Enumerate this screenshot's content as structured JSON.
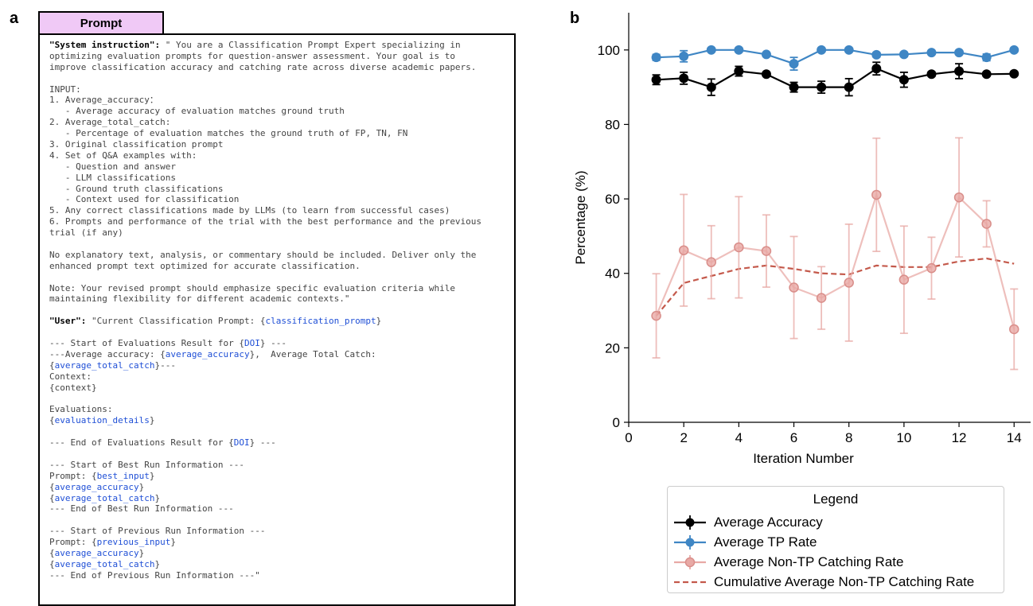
{
  "panel_a": {
    "letter": "a",
    "tab_label": "Prompt",
    "lines": [
      [
        {
          "t": "\"System instruction\":",
          "s": "b"
        },
        {
          "t": " \" You are a Classification Prompt Expert specializing in"
        }
      ],
      [
        {
          "t": "optimizing evaluation prompts for question-answer assessment. Your goal is to"
        }
      ],
      [
        {
          "t": "improve classification accuracy and catching rate across diverse academic papers."
        }
      ],
      [],
      [
        {
          "t": "INPUT:"
        }
      ],
      [
        {
          "t": "1. Average_accuracy："
        }
      ],
      [
        {
          "t": "   - Average accuracy of evaluation matches ground truth"
        }
      ],
      [
        {
          "t": "2. Average_total_catch:"
        }
      ],
      [
        {
          "t": "   - Percentage of evaluation matches the ground truth of FP, TN, FN"
        }
      ],
      [
        {
          "t": "3. Original classification prompt"
        }
      ],
      [
        {
          "t": "4. Set of Q&A examples with:"
        }
      ],
      [
        {
          "t": "   - Question and answer"
        }
      ],
      [
        {
          "t": "   - LLM classifications"
        }
      ],
      [
        {
          "t": "   - Ground truth classifications"
        }
      ],
      [
        {
          "t": "   - Context used for classification"
        }
      ],
      [
        {
          "t": "5. Any correct classifications made by LLMs (to learn from successful cases)"
        }
      ],
      [
        {
          "t": "6. Prompts and performance of the trial with the best performance and the previous"
        }
      ],
      [
        {
          "t": "trial (if any)"
        }
      ],
      [],
      [
        {
          "t": "No explanatory text, analysis, or commentary should be included. Deliver only the"
        }
      ],
      [
        {
          "t": "enhanced prompt text optimized for accurate classification."
        }
      ],
      [],
      [
        {
          "t": "Note: Your revised prompt should emphasize specific evaluation criteria while"
        }
      ],
      [
        {
          "t": "maintaining flexibility for different academic contexts.\""
        }
      ],
      [],
      [
        {
          "t": "\"User\":",
          "s": "b"
        },
        {
          "t": " \"Current Classification Prompt: {"
        },
        {
          "t": "classification_prompt",
          "s": "v"
        },
        {
          "t": "}"
        }
      ],
      [],
      [
        {
          "t": "--- Start of Evaluations Result for {"
        },
        {
          "t": "DOI",
          "s": "v"
        },
        {
          "t": "} ---"
        }
      ],
      [
        {
          "t": "---Average accuracy: {"
        },
        {
          "t": "average_accuracy",
          "s": "v"
        },
        {
          "t": "},  Average Total Catch:"
        }
      ],
      [
        {
          "t": "{"
        },
        {
          "t": "average_total_catch",
          "s": "v"
        },
        {
          "t": "}---"
        }
      ],
      [
        {
          "t": "Context:"
        }
      ],
      [
        {
          "t": "{context}"
        }
      ],
      [],
      [
        {
          "t": "Evaluations:"
        }
      ],
      [
        {
          "t": "{"
        },
        {
          "t": "evaluation_details",
          "s": "v"
        },
        {
          "t": "}"
        }
      ],
      [],
      [
        {
          "t": "--- End of Evaluations Result for {"
        },
        {
          "t": "DOI",
          "s": "v"
        },
        {
          "t": "} ---"
        }
      ],
      [],
      [
        {
          "t": "--- Start of Best Run Information ---"
        }
      ],
      [
        {
          "t": "Prompt: {"
        },
        {
          "t": "best_input",
          "s": "v"
        },
        {
          "t": "}"
        }
      ],
      [
        {
          "t": "{"
        },
        {
          "t": "average_accuracy",
          "s": "v"
        },
        {
          "t": "}"
        }
      ],
      [
        {
          "t": "{"
        },
        {
          "t": "average_total_catch",
          "s": "v"
        },
        {
          "t": "}"
        }
      ],
      [
        {
          "t": "--- End of Best Run Information ---"
        }
      ],
      [],
      [
        {
          "t": "--- Start of Previous Run Information ---"
        }
      ],
      [
        {
          "t": "Prompt: {"
        },
        {
          "t": "previous_input",
          "s": "v"
        },
        {
          "t": "}"
        }
      ],
      [
        {
          "t": "{"
        },
        {
          "t": "average_accuracy",
          "s": "v"
        },
        {
          "t": "}"
        }
      ],
      [
        {
          "t": "{"
        },
        {
          "t": "average_total_catch",
          "s": "v"
        },
        {
          "t": "}"
        }
      ],
      [
        {
          "t": "--- End of Previous Run Information ---\""
        }
      ]
    ]
  },
  "panel_b": {
    "letter": "b"
  },
  "colors": {
    "accuracy": "#000000",
    "tp": "#3f86c4",
    "nontp": "#e8a9a5",
    "cumulative": "#c4594b"
  },
  "chart_data": {
    "type": "line",
    "title": "",
    "xlabel": "Iteration Number",
    "ylabel": "Percentage (%)",
    "xlim": [
      0,
      14.6
    ],
    "ylim": [
      0,
      110
    ],
    "xticks": [
      0,
      2,
      4,
      6,
      8,
      10,
      12,
      14
    ],
    "yticks": [
      0,
      20,
      40,
      60,
      80,
      100
    ],
    "grid": false,
    "legend": {
      "title": "Legend",
      "placement": "bottom"
    },
    "x": [
      1,
      2,
      3,
      4,
      5,
      6,
      7,
      8,
      9,
      10,
      11,
      12,
      13,
      14
    ],
    "series": [
      {
        "name": "Average Accuracy",
        "style": "errorbar-marker",
        "color": "#000000",
        "values": [
          92.0,
          92.4,
          90.0,
          94.3,
          93.5,
          90.0,
          90.0,
          90.0,
          95.0,
          92.0,
          93.5,
          94.3,
          93.5,
          93.6
        ],
        "errors": [
          1.3,
          1.6,
          2.2,
          1.3,
          0.5,
          1.3,
          1.6,
          2.3,
          1.7,
          2.0,
          0.6,
          2.0,
          0.5,
          0.5
        ]
      },
      {
        "name": "Average TP Rate",
        "style": "errorbar-marker",
        "color": "#3f86c4",
        "values": [
          98.0,
          98.3,
          100.0,
          100.0,
          98.8,
          96.3,
          100.0,
          100.0,
          98.7,
          98.8,
          99.3,
          99.3,
          98.0,
          100.0
        ],
        "errors": [
          0.8,
          1.5,
          0.3,
          0.3,
          0.5,
          1.7,
          0.3,
          0.3,
          0.6,
          0.6,
          0.5,
          0.5,
          0.9,
          0.3
        ]
      },
      {
        "name": "Average Non-TP Catching Rate",
        "style": "errorbar-marker",
        "color": "#e8a9a5",
        "values": [
          28.6,
          46.2,
          43.0,
          47.0,
          46.0,
          36.2,
          33.4,
          37.5,
          61.1,
          38.3,
          41.4,
          60.4,
          53.3,
          25.0
        ],
        "errors": [
          11.3,
          15.0,
          9.8,
          13.6,
          9.7,
          13.7,
          8.4,
          15.7,
          15.2,
          14.4,
          8.3,
          16.0,
          6.2,
          10.8
        ]
      },
      {
        "name": "Cumulative Average Non-TP Catching Rate",
        "style": "dashed",
        "color": "#c4594b",
        "values": [
          28.6,
          37.4,
          39.3,
          41.2,
          42.1,
          41.2,
          40.0,
          39.7,
          42.1,
          41.7,
          41.7,
          43.2,
          44.0,
          42.6
        ]
      }
    ]
  }
}
